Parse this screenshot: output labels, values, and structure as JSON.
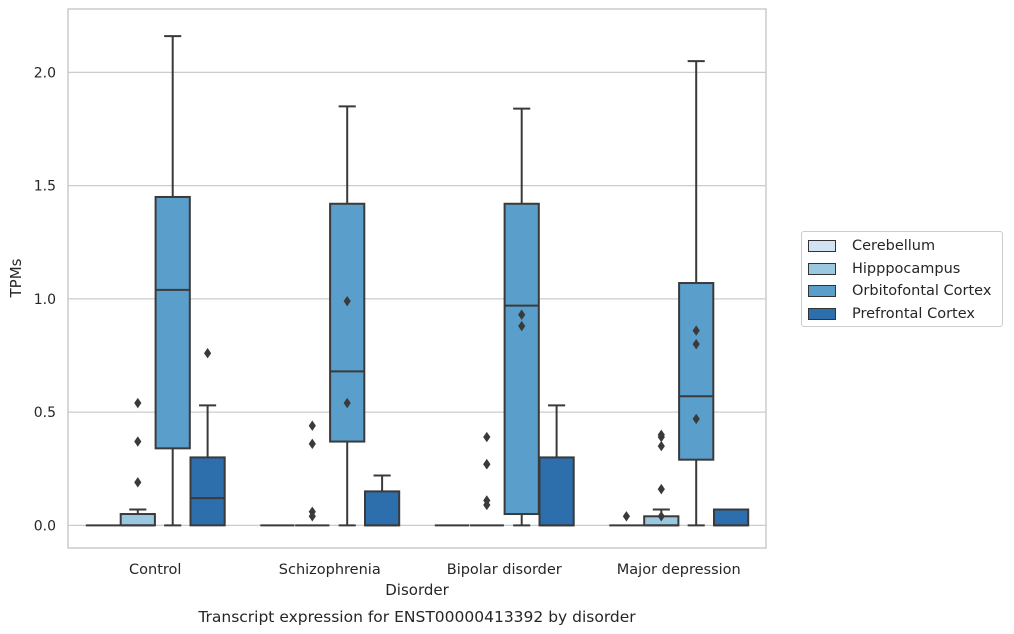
{
  "chart_data": {
    "type": "box",
    "title": "Transcript expression for ENST00000413392 by disorder",
    "xlabel": "Disorder",
    "ylabel": "TPMs",
    "ylim": [
      -0.1,
      2.28
    ],
    "yticks": [
      0.0,
      0.5,
      1.0,
      1.5,
      2.0
    ],
    "ytick_labels": [
      "0.0",
      "0.5",
      "1.0",
      "1.5",
      "2.0"
    ],
    "grid": "horizontal",
    "legend_position": "right",
    "categories": [
      "Control",
      "Schizophrenia",
      "Bipolar disorder",
      "Major depression"
    ],
    "series": [
      {
        "name": "Cerebellum",
        "color": "#d1e2f2",
        "boxes": [
          {
            "q1": 0,
            "median": 0,
            "q3": 0,
            "whisker_low": 0,
            "whisker_high": 0,
            "outliers": []
          },
          {
            "q1": 0,
            "median": 0,
            "q3": 0,
            "whisker_low": 0,
            "whisker_high": 0,
            "outliers": []
          },
          {
            "q1": 0,
            "median": 0,
            "q3": 0,
            "whisker_low": 0,
            "whisker_high": 0,
            "outliers": []
          },
          {
            "q1": 0,
            "median": 0,
            "q3": 0,
            "whisker_low": 0,
            "whisker_high": 0,
            "outliers": [
              0.04
            ]
          }
        ]
      },
      {
        "name": "Hipppocampus",
        "color": "#9ac8e0",
        "boxes": [
          {
            "q1": 0,
            "median": 0,
            "q3": 0.05,
            "whisker_low": 0,
            "whisker_high": 0.07,
            "outliers": [
              0.19,
              0.37,
              0.54
            ]
          },
          {
            "q1": 0,
            "median": 0,
            "q3": 0,
            "whisker_low": 0,
            "whisker_high": 0,
            "outliers": [
              0.04,
              0.06,
              0.36,
              0.44
            ]
          },
          {
            "q1": 0,
            "median": 0,
            "q3": 0,
            "whisker_low": 0,
            "whisker_high": 0,
            "outliers": [
              0.09,
              0.11,
              0.27,
              0.27,
              0.39
            ]
          },
          {
            "q1": 0,
            "median": 0,
            "q3": 0.04,
            "whisker_low": 0,
            "whisker_high": 0.07,
            "outliers": [
              0.04,
              0.16,
              0.35,
              0.4,
              0.39
            ]
          }
        ]
      },
      {
        "name": "Orbitofontal Cortex",
        "color": "#5a9fcc",
        "boxes": [
          {
            "q1": 0.34,
            "median": 1.04,
            "q3": 1.45,
            "whisker_low": 0,
            "whisker_high": 2.16,
            "outliers": []
          },
          {
            "q1": 0.37,
            "median": 0.68,
            "q3": 1.42,
            "whisker_low": 0,
            "whisker_high": 1.85,
            "outliers": [
              0.54,
              0.99
            ]
          },
          {
            "q1": 0.05,
            "median": 0.97,
            "q3": 1.42,
            "whisker_low": 0,
            "whisker_high": 1.84,
            "outliers": [
              0.88,
              0.93
            ]
          },
          {
            "q1": 0.29,
            "median": 0.57,
            "q3": 1.07,
            "whisker_low": 0,
            "whisker_high": 2.05,
            "outliers": [
              0.47,
              0.8,
              0.86
            ]
          }
        ]
      },
      {
        "name": "Prefrontal Cortex",
        "color": "#2c6fac",
        "boxes": [
          {
            "q1": 0,
            "median": 0.12,
            "q3": 0.3,
            "whisker_low": 0,
            "whisker_high": 0.53,
            "outliers": [
              0.76
            ]
          },
          {
            "q1": 0,
            "median": 0,
            "q3": 0.15,
            "whisker_low": 0,
            "whisker_high": 0.22,
            "outliers": []
          },
          {
            "q1": 0,
            "median": 0,
            "q3": 0.3,
            "whisker_low": 0,
            "whisker_high": 0.53,
            "outliers": []
          },
          {
            "q1": 0,
            "median": 0,
            "q3": 0.07,
            "whisker_low": 0,
            "whisker_high": 0.07,
            "outliers": []
          }
        ]
      }
    ]
  }
}
